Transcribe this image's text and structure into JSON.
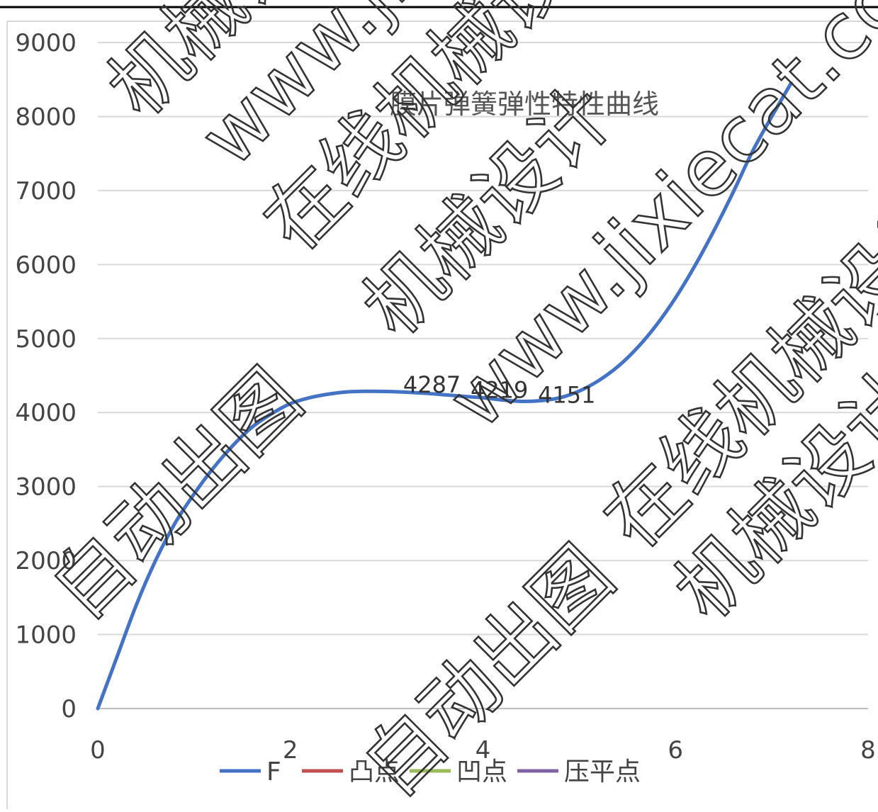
{
  "chart_data": {
    "type": "line",
    "title": "膜片弹簧弹性特性曲线",
    "xlabel": "",
    "ylabel": "",
    "xlim": [
      0,
      8
    ],
    "ylim": [
      0,
      9000
    ],
    "x_ticks": [
      0,
      2,
      4,
      6,
      8
    ],
    "y_ticks": [
      0,
      1000,
      2000,
      3000,
      4000,
      5000,
      6000,
      7000,
      8000,
      9000
    ],
    "grid": true,
    "legend_position": "bottom",
    "series": [
      {
        "name": "F",
        "color": "#4472C4",
        "x": [
          0,
          0.2,
          0.4,
          0.6,
          0.8,
          1.0,
          1.2,
          1.4,
          1.6,
          1.8,
          2.0,
          2.2,
          2.4,
          2.6,
          2.8,
          3.0,
          3.2,
          3.4,
          3.6,
          3.8,
          4.0,
          4.2,
          4.4,
          4.6,
          4.8,
          5.0,
          5.2,
          5.4,
          5.6,
          5.8,
          6.0,
          6.2,
          6.4,
          6.6,
          6.8,
          7.0,
          7.2
        ],
        "y": [
          0,
          700,
          1400,
          2000,
          2500,
          2900,
          3250,
          3550,
          3800,
          3980,
          4120,
          4200,
          4250,
          4280,
          4287,
          4285,
          4275,
          4260,
          4240,
          4219,
          4200,
          4170,
          4151,
          4160,
          4200,
          4290,
          4430,
          4620,
          4870,
          5180,
          5550,
          5980,
          6460,
          6980,
          7530,
          8000,
          8450
        ]
      },
      {
        "name": "凸点",
        "color": "#C0504D",
        "x": [],
        "y": []
      },
      {
        "name": "凹点",
        "color": "#9BBB59",
        "x": [],
        "y": []
      },
      {
        "name": "压平点",
        "color": "#8064A2",
        "x": [],
        "y": []
      }
    ],
    "annotations": [
      {
        "text": "4287",
        "x": 3.5,
        "y": 4287
      },
      {
        "text": "4219",
        "x": 4.2,
        "y": 4219
      },
      {
        "text": "4151",
        "x": 4.9,
        "y": 4151
      }
    ]
  },
  "watermarks": [
    "在线机械设计",
    "机械设计",
    "www.jixiecat.com",
    "自动出图"
  ]
}
